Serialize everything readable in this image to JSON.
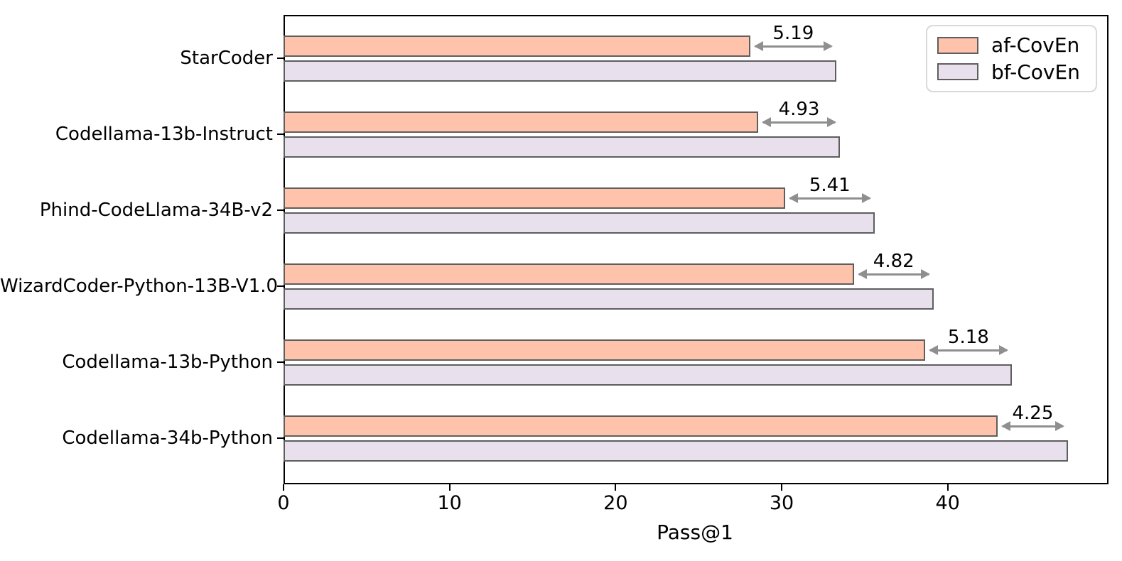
{
  "chart_data": {
    "type": "bar",
    "orientation": "horizontal",
    "title": "",
    "xlabel": "Pass@1",
    "ylabel": "",
    "categories": [
      "StarCoder",
      "Codellama-13b-Instruct",
      "Phind-CodeLlama-34B-v2",
      "WizardCoder-Python-13B-V1.0",
      "Codellama-13b-Python",
      "Codellama-34b-Python"
    ],
    "series": [
      {
        "name": "af-CovEn",
        "color": "#ffc3ac",
        "values": [
          28.1,
          28.6,
          30.2,
          34.35,
          38.65,
          43.0
        ]
      },
      {
        "name": "bf-CovEn",
        "color": "#e8e1ed",
        "values": [
          33.3,
          33.5,
          35.6,
          39.15,
          43.85,
          47.25
        ]
      }
    ],
    "diff_labels": [
      "5.19",
      "4.93",
      "5.41",
      "4.82",
      "5.18",
      "4.25"
    ],
    "xticks": [
      0,
      10,
      20,
      30,
      40
    ],
    "xtick_labels": [
      "0",
      "10",
      "20",
      "30",
      "40"
    ],
    "xlim": [
      0,
      49.6
    ],
    "grid": false,
    "legend_position": "upper-right",
    "colors": {
      "bar_edge": "#5e5e5e",
      "arrow": "#8f8f8f",
      "spine": "#000000",
      "legend_border": "#d9d9d9",
      "text": "#000000",
      "background": "#ffffff"
    }
  }
}
